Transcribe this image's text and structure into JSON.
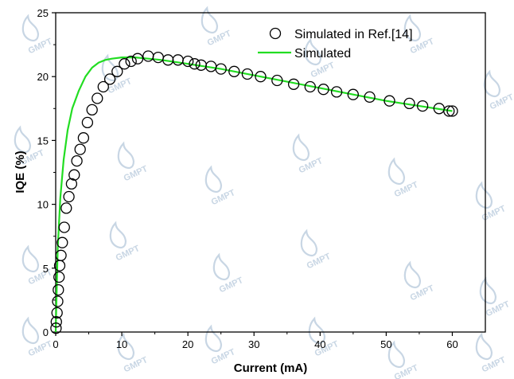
{
  "watermark": {
    "text": "GMPT",
    "color": "#c8d6e4"
  },
  "chart_data": {
    "type": "scatter",
    "xlabel": "Current (mA)",
    "ylabel": "IQE (%)",
    "xlim": [
      0,
      65
    ],
    "ylim": [
      0,
      25
    ],
    "xticks": [
      0,
      10,
      20,
      30,
      40,
      50,
      60
    ],
    "yticks": [
      0,
      5,
      10,
      15,
      20,
      25
    ],
    "xtick_labels": [
      "0",
      "10",
      "20",
      "30",
      "40",
      "50",
      "60"
    ],
    "ytick_labels": [
      "0",
      "5",
      "10",
      "15",
      "20",
      "25"
    ],
    "grid": false,
    "legend_position": "top-right",
    "series": [
      {
        "name": "Simulated in Ref.[14]",
        "marker": "open-circle",
        "color": "#000000",
        "x": [
          0.05,
          0.1,
          0.2,
          0.3,
          0.4,
          0.5,
          0.6,
          0.8,
          1.0,
          1.3,
          1.6,
          2.0,
          2.4,
          2.8,
          3.2,
          3.7,
          4.2,
          4.8,
          5.5,
          6.3,
          7.2,
          8.2,
          9.3,
          10.4,
          11.4,
          12.4,
          14.0,
          15.5,
          17.0,
          18.5,
          20.0,
          21.0,
          22.0,
          23.5,
          25.0,
          27.0,
          29.0,
          31.0,
          33.5,
          36.0,
          38.5,
          40.5,
          42.5,
          45.0,
          47.5,
          50.5,
          53.5,
          55.5,
          58.0,
          59.5,
          60.0
        ],
        "y": [
          0.3,
          0.8,
          1.5,
          2.4,
          3.3,
          4.3,
          5.2,
          6.0,
          7.0,
          8.2,
          9.7,
          10.6,
          11.6,
          12.3,
          13.4,
          14.3,
          15.2,
          16.4,
          17.4,
          18.3,
          19.2,
          19.8,
          20.4,
          21.0,
          21.2,
          21.4,
          21.6,
          21.5,
          21.3,
          21.3,
          21.2,
          21.0,
          20.9,
          20.8,
          20.6,
          20.4,
          20.2,
          20.0,
          19.7,
          19.4,
          19.2,
          19.0,
          18.8,
          18.6,
          18.4,
          18.1,
          17.9,
          17.7,
          17.5,
          17.3,
          17.3
        ]
      },
      {
        "name": "Simulated",
        "marker": "line",
        "color": "#22dd22",
        "x": [
          0.0,
          0.3,
          0.7,
          1.2,
          1.8,
          2.5,
          3.5,
          4.5,
          5.5,
          6.5,
          7.5,
          8.5,
          10.0,
          12.0,
          14.0,
          16.0,
          20.0,
          25.0,
          30.0,
          35.0,
          40.0,
          45.0,
          50.0,
          55.0,
          60.0
        ],
        "y": [
          0.0,
          6.5,
          10.5,
          13.5,
          15.8,
          17.5,
          18.9,
          20.0,
          20.7,
          21.1,
          21.3,
          21.4,
          21.5,
          21.5,
          21.4,
          21.3,
          21.0,
          20.6,
          20.1,
          19.6,
          19.1,
          18.6,
          18.1,
          17.7,
          17.3
        ]
      }
    ]
  }
}
